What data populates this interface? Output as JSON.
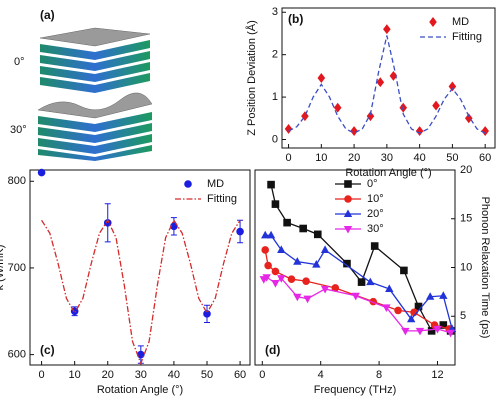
{
  "image_panel": {
    "label": "(a)",
    "annotations": [
      "0°",
      "30°"
    ]
  },
  "chart_data": [
    {
      "type": "scatter",
      "label": "(b)",
      "xlabel": "Rotation Angle (°)",
      "ylabel": "Z Position Deviation (Å)",
      "xlim": [
        -2,
        63
      ],
      "xticks": [
        0,
        10,
        20,
        30,
        40,
        50,
        60
      ],
      "ylim": [
        -0.2,
        3.1
      ],
      "yticks": [
        0,
        1,
        2,
        3
      ],
      "y_side": "left",
      "legend": "upper right",
      "series": [
        {
          "name": "MD",
          "marker": "diamond",
          "color": "#e3171e",
          "x": [
            0,
            5,
            10,
            15,
            20,
            25,
            28,
            30,
            32,
            35,
            40,
            45,
            50,
            55,
            60
          ],
          "values": [
            0.25,
            0.55,
            1.45,
            0.75,
            0.2,
            0.55,
            1.35,
            2.6,
            1.5,
            0.75,
            0.2,
            0.8,
            1.25,
            0.5,
            0.2
          ]
        },
        {
          "name": "Fitting",
          "line": "dashed",
          "color": "#3b4fc4",
          "x": [
            0,
            2.5,
            5,
            7.5,
            10,
            12.5,
            15,
            17.5,
            20,
            22.5,
            25,
            27.5,
            30,
            32.5,
            35,
            37.5,
            40,
            42.5,
            45,
            47.5,
            50,
            52.5,
            55,
            57.5,
            60
          ],
          "values": [
            0.2,
            0.3,
            0.55,
            1.0,
            1.3,
            1.0,
            0.55,
            0.25,
            0.15,
            0.25,
            0.6,
            1.6,
            2.45,
            1.6,
            0.6,
            0.25,
            0.15,
            0.25,
            0.55,
            0.95,
            1.2,
            0.95,
            0.55,
            0.25,
            0.15
          ]
        }
      ]
    },
    {
      "type": "scatter",
      "label": "(c)",
      "xlabel": "Rotation Angle (°)",
      "ylabel": "κ (W/mK)",
      "xlim": [
        -3.5,
        63
      ],
      "xticks": [
        0,
        10,
        20,
        30,
        40,
        50,
        60
      ],
      "ylim": [
        588,
        813
      ],
      "yticks": [
        600,
        700,
        800
      ],
      "y_side": "left",
      "legend": "upper right",
      "series": [
        {
          "name": "MD",
          "marker": "circle",
          "color": "#1a1ee0",
          "x": [
            0,
            10,
            20,
            30,
            40,
            50,
            60
          ],
          "values": [
            810,
            650,
            752,
            600,
            748,
            647,
            742
          ],
          "errors": [
            null,
            5,
            22,
            10,
            10,
            10,
            13
          ]
        },
        {
          "name": "Fitting",
          "line": "dashdot",
          "color": "#d42a2a",
          "x": [
            0,
            2.5,
            5,
            7.5,
            10,
            12.5,
            15,
            17.5,
            20,
            22.5,
            25,
            27.5,
            30,
            32.5,
            35,
            37.5,
            40,
            42.5,
            45,
            47.5,
            50,
            52.5,
            55,
            57.5,
            60
          ],
          "values": [
            755,
            740,
            705,
            665,
            648,
            665,
            705,
            740,
            755,
            735,
            680,
            615,
            590,
            615,
            680,
            735,
            755,
            740,
            705,
            665,
            648,
            665,
            705,
            740,
            755
          ]
        }
      ]
    },
    {
      "type": "line",
      "label": "(d)",
      "xlabel": "Frequency (THz)",
      "ylabel": "Phonon Relaxation Time (ps)",
      "xlim": [
        -0.5,
        13.2
      ],
      "xticks": [
        0,
        4,
        8,
        12
      ],
      "ylim": [
        0,
        20
      ],
      "yticks": [
        5,
        10,
        15,
        20
      ],
      "y_side": "right",
      "legend": "upper center",
      "series": [
        {
          "name": "0°",
          "marker": "square",
          "line": "solid",
          "color": "#111111",
          "x": [
            0.6,
            0.9,
            1.7,
            2.8,
            3.8,
            5.8,
            6.8,
            7.7,
            9.7,
            10.7,
            11.6,
            12.4,
            12.9
          ],
          "values": [
            18.5,
            16.5,
            14.6,
            14,
            13.4,
            10.4,
            8.5,
            12.2,
            9.7,
            6,
            3.5,
            4.1,
            3.5
          ]
        },
        {
          "name": "10°",
          "marker": "circle",
          "line": "solid",
          "color": "#e8231d",
          "x": [
            0.2,
            0.4,
            0.9,
            2,
            3,
            5,
            7.6,
            9.3,
            10.4,
            11.8,
            12.8
          ],
          "values": [
            11.8,
            10.2,
            9.6,
            8.8,
            8.6,
            7.9,
            6.5,
            5.6,
            5.4,
            4.1,
            3.7
          ]
        },
        {
          "name": "20°",
          "marker": "triangle",
          "line": "solid",
          "color": "#2234d8",
          "x": [
            0.2,
            0.6,
            1.3,
            2.4,
            3.7,
            4.3,
            7.4,
            8.7,
            10.2,
            11.5,
            12.4,
            13
          ],
          "values": [
            13.3,
            13.3,
            11.8,
            10.6,
            10.3,
            11.8,
            8.5,
            7.8,
            4.7,
            7,
            7.1,
            3.7
          ]
        },
        {
          "name": "30°",
          "marker": "triangle-down",
          "line": "solid",
          "color": "#e627e6",
          "x": [
            0.1,
            0.3,
            0.9,
            1.3,
            2.4,
            3.1,
            4.3,
            6.4,
            8.5,
            9.8,
            10.8,
            12,
            12.9
          ],
          "values": [
            8.8,
            9,
            8.4,
            8.9,
            7,
            6.8,
            7.8,
            7.1,
            5.9,
            3.5,
            3.5,
            3.7,
            3.3
          ]
        }
      ]
    }
  ]
}
